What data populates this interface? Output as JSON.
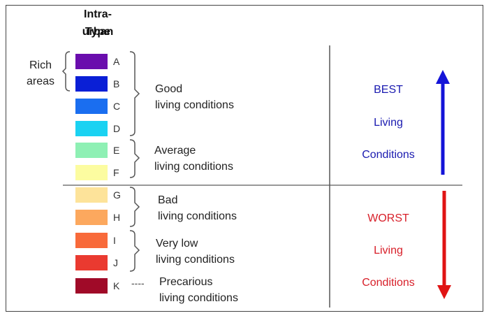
{
  "title": {
    "line1": "Intra-urban",
    "line2": "Type"
  },
  "rich_label": {
    "line1": "Rich",
    "line2": "areas"
  },
  "types": [
    {
      "code": "A",
      "color": "#6a0dad"
    },
    {
      "code": "B",
      "color": "#0a1fd6"
    },
    {
      "code": "C",
      "color": "#1a6ef0"
    },
    {
      "code": "D",
      "color": "#1ad2f2"
    },
    {
      "code": "E",
      "color": "#8ef0b4"
    },
    {
      "code": "F",
      "color": "#fcfca0"
    },
    {
      "code": "G",
      "color": "#fde39a"
    },
    {
      "code": "H",
      "color": "#fca85e"
    },
    {
      "code": "I",
      "color": "#f86a3a"
    },
    {
      "code": "J",
      "color": "#ea3a30"
    },
    {
      "code": "K",
      "color": "#a00a28"
    }
  ],
  "conditions": {
    "good": {
      "line1": "Good",
      "line2": "living conditions"
    },
    "average": {
      "line1": "Average",
      "line2": "living conditions"
    },
    "bad": {
      "line1": "Bad",
      "line2": "living conditions"
    },
    "very_low": {
      "line1": "Very low",
      "line2": "living conditions"
    },
    "precarious": {
      "line1": "Precarious",
      "line2": "living conditions"
    }
  },
  "best": {
    "line1": "BEST",
    "line2": "Living",
    "line3": "Conditions",
    "color": "#1a1ab0",
    "arrow_color": "#1414d8"
  },
  "worst": {
    "line1": "WORST",
    "line2": "Living",
    "line3": "Conditions",
    "color": "#d8202a",
    "arrow_color": "#e01414"
  },
  "k_connector": "----"
}
